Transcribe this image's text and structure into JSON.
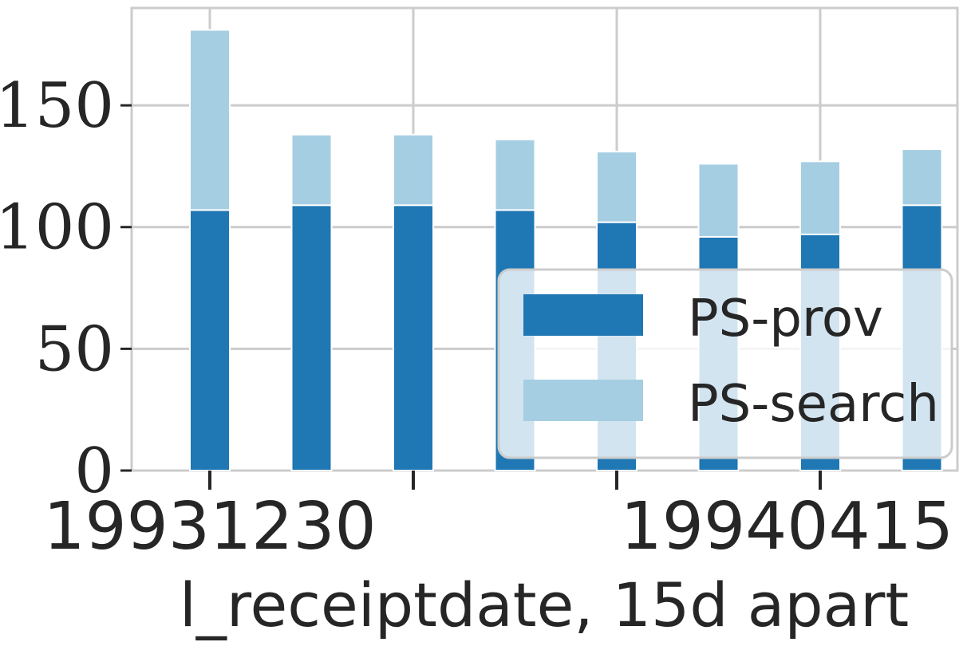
{
  "chart_data": {
    "type": "bar",
    "stacked": true,
    "x_tick_labels": [
      "19931230",
      "19940415"
    ],
    "xlabel": "l_receiptdate, 15d apart",
    "ylabel": "",
    "ylim": [
      0,
      190
    ],
    "y_ticks": [
      0,
      50,
      100,
      150
    ],
    "grid": true,
    "legend_position": "lower-right",
    "series": [
      {
        "name": "PS-prov",
        "color": "#1f77b4",
        "values": [
          107,
          109,
          109,
          107,
          102,
          96,
          97,
          109
        ]
      },
      {
        "name": "PS-search",
        "color": "#a6cee3",
        "values": [
          74,
          29,
          29,
          29,
          29,
          30,
          30,
          23
        ]
      }
    ]
  }
}
